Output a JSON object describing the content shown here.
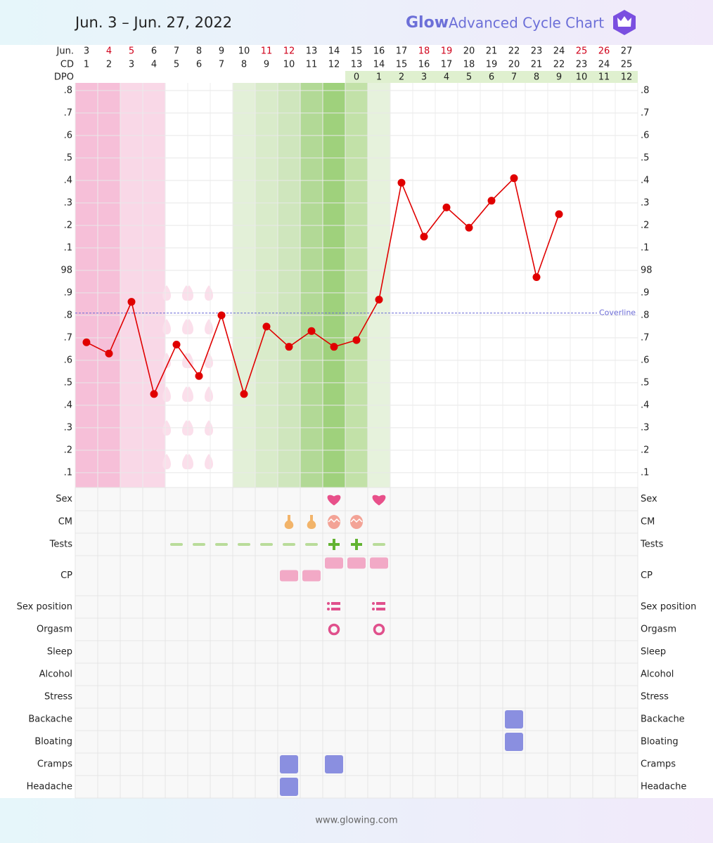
{
  "header": {
    "title": "Jun. 3 – Jun. 27, 2022",
    "brand": "Glow",
    "product": "Advanced Cycle Chart"
  },
  "footer": "www.glowing.com",
  "chart_data": {
    "type": "line",
    "row_labels": {
      "month": "Jun.",
      "cd": "CD",
      "dpo": "DPO"
    },
    "categories": [
      "3",
      "4",
      "5",
      "6",
      "7",
      "8",
      "9",
      "10",
      "11",
      "12",
      "13",
      "14",
      "15",
      "16",
      "17",
      "18",
      "19",
      "20",
      "21",
      "22",
      "23",
      "24",
      "25",
      "26",
      "27"
    ],
    "category_colors": [
      "#222",
      "#d0021b",
      "#d0021b",
      "#222",
      "#222",
      "#222",
      "#222",
      "#222",
      "#d0021b",
      "#d0021b",
      "#222",
      "#222",
      "#222",
      "#222",
      "#222",
      "#d0021b",
      "#d0021b",
      "#222",
      "#222",
      "#222",
      "#222",
      "#222",
      "#d0021b",
      "#d0021b",
      "#222"
    ],
    "cd": [
      1,
      2,
      3,
      4,
      5,
      6,
      7,
      8,
      9,
      10,
      11,
      12,
      13,
      14,
      15,
      16,
      17,
      18,
      19,
      20,
      21,
      22,
      23,
      24,
      25
    ],
    "dpo": [
      null,
      null,
      null,
      null,
      null,
      null,
      null,
      null,
      null,
      null,
      null,
      null,
      0,
      1,
      2,
      3,
      4,
      5,
      6,
      7,
      8,
      9,
      10,
      11,
      12
    ],
    "dpo_color": "#dff0cf",
    "column_colors": [
      "#f6bfd8",
      "#f6bfd8",
      "#f9d8e7",
      "#f9d8e7",
      null,
      null,
      null,
      "#e3f0d8",
      "#d9ebca",
      "#cfe6bd",
      "#b2d996",
      "#9fd17c",
      "#c2e1a8",
      "#e6f2dc",
      null,
      null,
      null,
      null,
      null,
      null,
      null,
      null,
      null,
      null,
      null
    ],
    "spotting_cd": [
      5,
      6
    ],
    "spotting_color": "#fbdfeb",
    "color": "#e00000",
    "values": [
      97.68,
      97.63,
      97.86,
      97.45,
      97.67,
      97.53,
      97.8,
      97.45,
      97.75,
      97.66,
      97.73,
      97.66,
      97.69,
      97.87,
      98.39,
      98.15,
      98.28,
      98.19,
      98.31,
      98.41,
      97.97,
      98.25,
      null,
      null,
      null
    ],
    "coverline": {
      "value": 97.81,
      "label": "Coverline",
      "color": "#6b6bd6"
    },
    "ylim": [
      97.034,
      98.834
    ],
    "yticks": [
      {
        "value": 97.1,
        "label": ".1"
      },
      {
        "value": 97.2,
        "label": ".2"
      },
      {
        "value": 97.3,
        "label": ".3"
      },
      {
        "value": 97.4,
        "label": ".4"
      },
      {
        "value": 97.5,
        "label": ".5"
      },
      {
        "value": 97.6,
        "label": ".6"
      },
      {
        "value": 97.7,
        "label": ".7"
      },
      {
        "value": 97.8,
        "label": ".8"
      },
      {
        "value": 97.9,
        "label": ".9"
      },
      98,
      {
        "value": 98.1,
        "label": ".1"
      },
      {
        "value": 98.2,
        "label": ".2"
      },
      {
        "value": 98.3,
        "label": ".3"
      },
      {
        "value": 98.4,
        "label": ".4"
      },
      {
        "value": 98.5,
        "label": ".5"
      },
      {
        "value": 98.6,
        "label": ".6"
      },
      {
        "value": 98.7,
        "label": ".7"
      },
      {
        "value": 98.8,
        "label": ".8"
      }
    ],
    "grid": true,
    "symptoms": [
      {
        "name": "Sex",
        "groups": [
          {
            "icon": "heart",
            "cd": [
              12,
              14
            ]
          }
        ]
      },
      {
        "name": "CM",
        "groups": [
          {
            "icon": "sticky",
            "cd": [
              10,
              11
            ]
          },
          {
            "icon": "egg",
            "cd": [
              12,
              13
            ]
          }
        ]
      },
      {
        "name": "Tests",
        "groups": [
          {
            "icon": "dash",
            "cd": [
              5,
              6,
              7,
              8,
              9,
              10,
              11,
              14
            ]
          },
          {
            "icon": "plus",
            "cd": [
              12,
              13
            ]
          }
        ]
      },
      {
        "name": "CP",
        "groups": [
          {
            "icon": "low",
            "cd": [
              10,
              11
            ]
          },
          {
            "icon": "high",
            "cd": [
              12,
              13,
              14
            ]
          }
        ]
      },
      {
        "name": "Sex position",
        "groups": [
          {
            "icon": "position",
            "cd": [
              12,
              14
            ]
          }
        ]
      },
      {
        "name": "Orgasm",
        "groups": [
          {
            "icon": "ring",
            "cd": [
              12,
              14
            ]
          }
        ]
      },
      {
        "name": "Sleep",
        "groups": []
      },
      {
        "name": "Alcohol",
        "groups": []
      },
      {
        "name": "Stress",
        "groups": []
      },
      {
        "name": "Backache",
        "groups": [
          {
            "icon": "square",
            "cd": [
              20
            ]
          }
        ]
      },
      {
        "name": "Bloating",
        "groups": [
          {
            "icon": "square",
            "cd": [
              20
            ]
          }
        ]
      },
      {
        "name": "Cramps",
        "groups": [
          {
            "icon": "square",
            "cd": [
              10,
              12
            ]
          }
        ]
      },
      {
        "name": "Headache",
        "groups": [
          {
            "icon": "square",
            "cd": [
              10
            ]
          }
        ]
      }
    ]
  }
}
